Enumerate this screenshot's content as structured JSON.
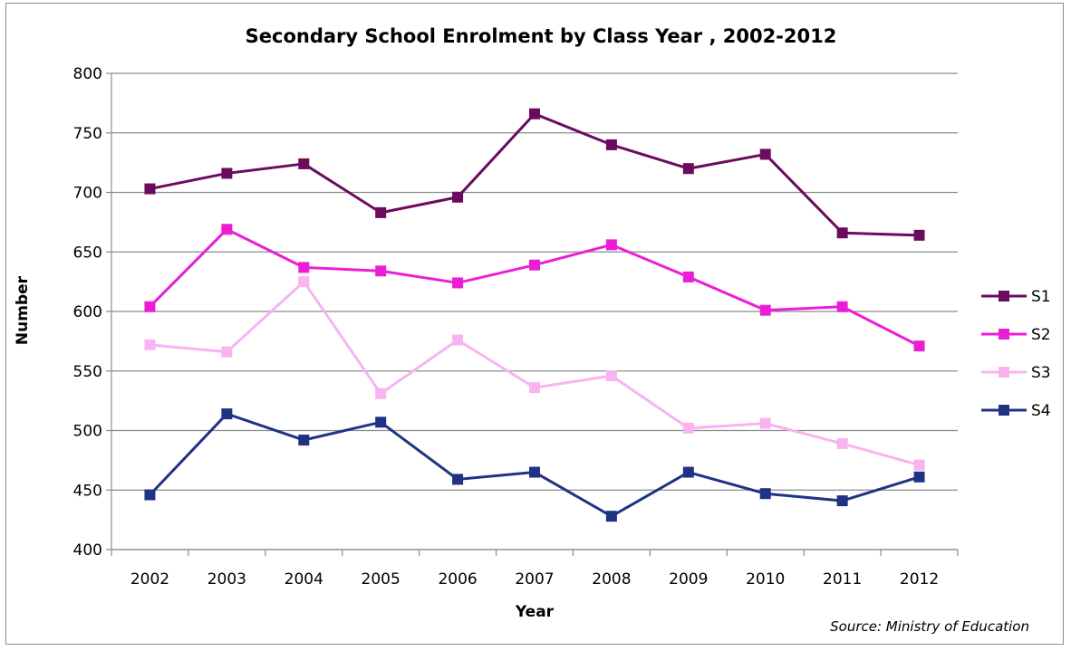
{
  "chart_data": {
    "type": "line",
    "title": "Secondary School Enrolment by Class Year , 2002-2012",
    "xlabel": "Year",
    "ylabel": "Number",
    "ylim": [
      400,
      800
    ],
    "yticks": [
      "400",
      "450",
      "500",
      "550",
      "600",
      "650",
      "700",
      "750",
      "800"
    ],
    "categories": [
      "2002",
      "2003",
      "2004",
      "2005",
      "2006",
      "2007",
      "2008",
      "2009",
      "2010",
      "2011",
      "2012"
    ],
    "grid": "horizontal",
    "legend_position": "right",
    "source": "Source: Ministry of Education",
    "series": [
      {
        "name": "S1",
        "color": "#6b0b5e",
        "values": [
          703,
          716,
          724,
          683,
          696,
          766,
          740,
          720,
          732,
          666,
          664
        ]
      },
      {
        "name": "S2",
        "color": "#ec1ed5",
        "values": [
          604,
          669,
          637,
          634,
          624,
          639,
          656,
          629,
          601,
          604,
          571
        ]
      },
      {
        "name": "S3",
        "color": "#f9b3f0",
        "values": [
          572,
          566,
          625,
          531,
          576,
          536,
          546,
          502,
          506,
          489,
          471
        ]
      },
      {
        "name": "S4",
        "color": "#1f3385",
        "values": [
          446,
          514,
          492,
          507,
          459,
          465,
          428,
          465,
          447,
          441,
          461
        ]
      }
    ]
  }
}
